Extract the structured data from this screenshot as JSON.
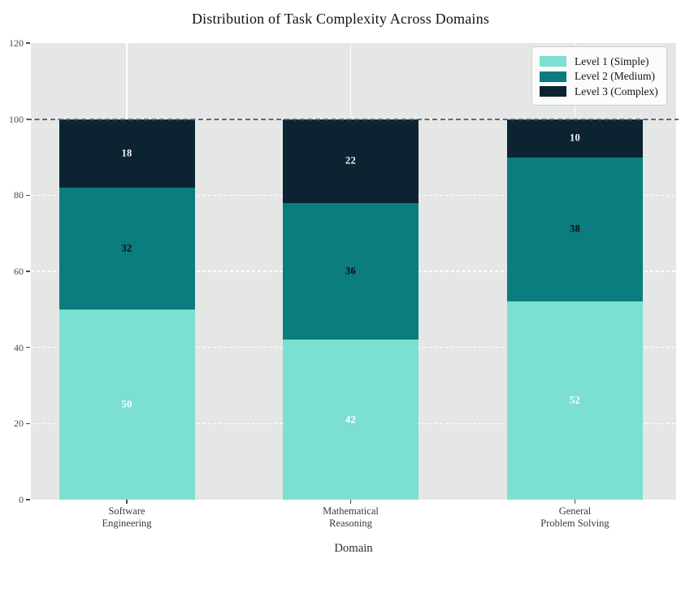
{
  "title": "Distribution of Task Complexity Across Domains",
  "chart_data": {
    "type": "bar",
    "stacked": true,
    "title": "Distribution of Task Complexity Across Domains",
    "xlabel": "Domain",
    "ylabel": "",
    "ylim": [
      0,
      120
    ],
    "yticks": [
      0,
      20,
      40,
      60,
      80,
      100,
      120
    ],
    "grid": true,
    "plot_background": "#e5e6e6",
    "categories": [
      "Software\nEngineering",
      "Mathematical\nReasoning",
      "General\nProblem Solving"
    ],
    "series": [
      {
        "name": "Level 1 (Simple)",
        "color": "#7CE0D1",
        "label_color": "#ffffff",
        "values": [
          50,
          42,
          52
        ]
      },
      {
        "name": "Level 2 (Medium)",
        "color": "#0B7D7E",
        "label_color": "#0a0a0a",
        "values": [
          32,
          36,
          38
        ]
      },
      {
        "name": "Level 3 (Complex)",
        "color": "#0C2431",
        "label_color": "#f2f2f2",
        "values": [
          18,
          22,
          10
        ]
      }
    ],
    "reference_line": {
      "y": 100,
      "style": "dashed",
      "color": "#666666"
    },
    "legend": {
      "position": "upper right",
      "entries": [
        "Level 1 (Simple)",
        "Level 2 (Medium)",
        "Level 3 (Complex)"
      ]
    }
  }
}
